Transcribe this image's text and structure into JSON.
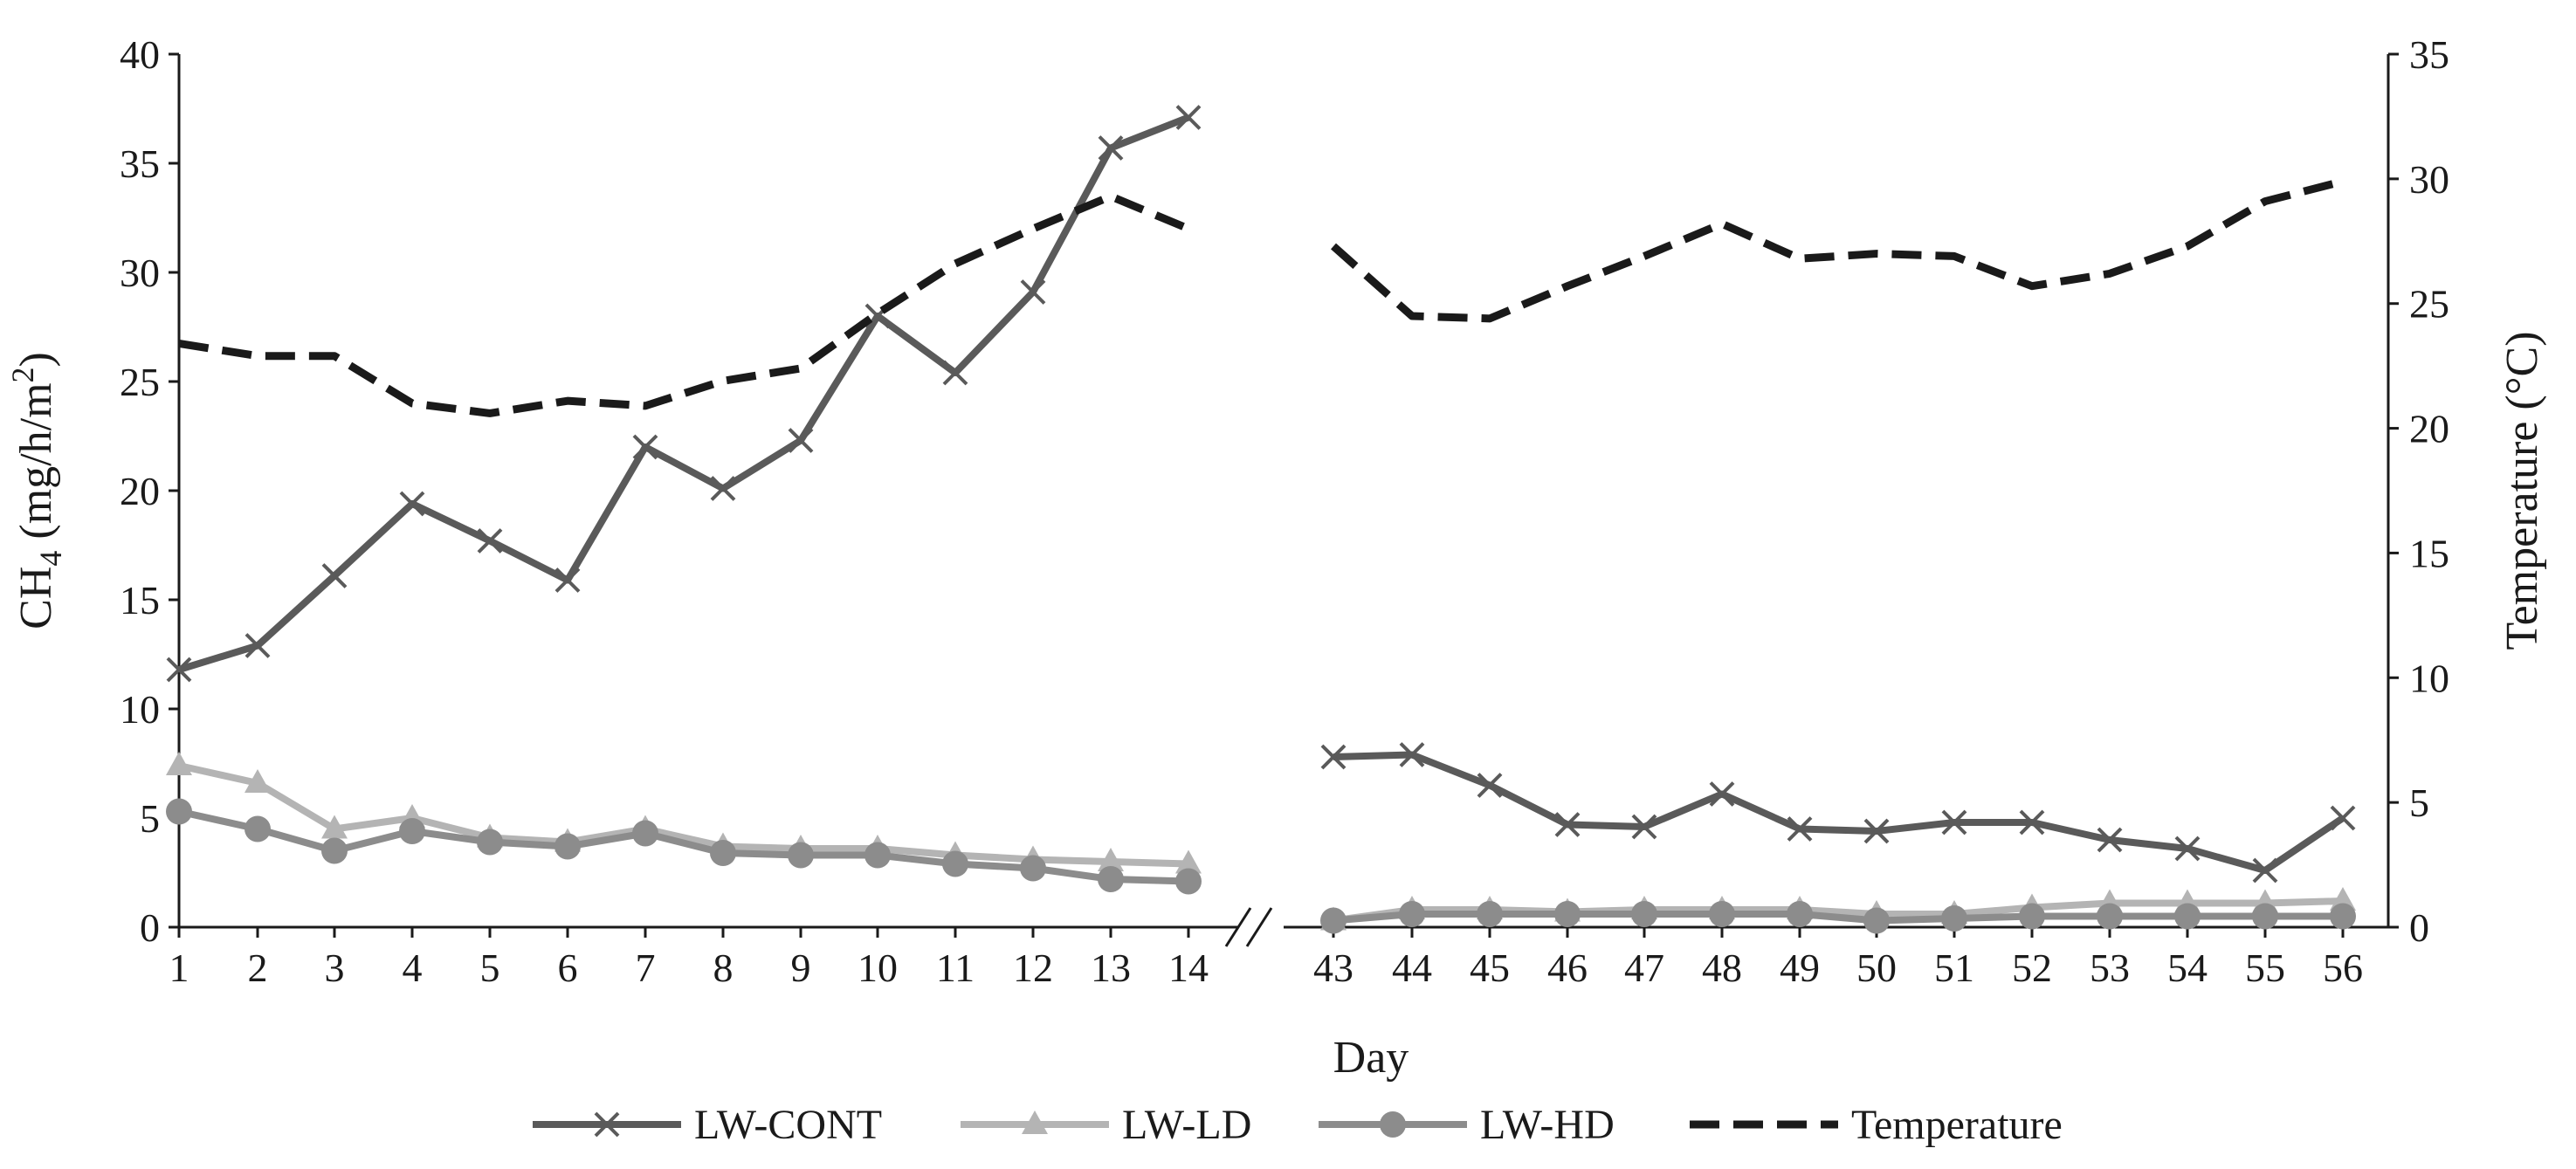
{
  "chart_data": {
    "type": "line",
    "title": "",
    "xlabel": "Day",
    "ylabel_left_main": "CH",
    "ylabel_left_sub": "4",
    "ylabel_left_rest": " (mg/h/m",
    "ylabel_left_sup": "2",
    "ylabel_left_end": ")",
    "ylabel_right": "Temperature (°C)",
    "ylim_left": [
      0,
      40
    ],
    "ylim_right": [
      0,
      35
    ],
    "yticks_left": [
      0,
      5,
      10,
      15,
      20,
      25,
      30,
      35,
      40
    ],
    "yticks_right": [
      0,
      5,
      10,
      15,
      20,
      25,
      30,
      35
    ],
    "categories": [
      "1",
      "2",
      "3",
      "4",
      "5",
      "6",
      "7",
      "8",
      "9",
      "10",
      "11",
      "12",
      "13",
      "14",
      "43",
      "44",
      "45",
      "46",
      "47",
      "48",
      "49",
      "50",
      "51",
      "52",
      "53",
      "54",
      "55",
      "56"
    ],
    "axis_break": "between 14 and 43",
    "series": [
      {
        "name": "LW-CONT",
        "axis": "left",
        "color": "#5a5a5a",
        "marker": "x",
        "values": [
          11.8,
          12.9,
          16.1,
          19.4,
          17.7,
          15.9,
          22.0,
          20.1,
          22.3,
          28.0,
          25.4,
          29.1,
          35.7,
          37.1,
          7.8,
          7.9,
          6.5,
          4.7,
          4.6,
          6.1,
          4.5,
          4.4,
          4.8,
          4.8,
          4.0,
          3.6,
          2.6,
          5.0
        ]
      },
      {
        "name": "LW-LD",
        "axis": "left",
        "color": "#b4b4b4",
        "marker": "triangle",
        "values": [
          7.4,
          6.6,
          4.5,
          5.0,
          4.1,
          3.9,
          4.5,
          3.7,
          3.6,
          3.6,
          3.3,
          3.1,
          3.0,
          2.9,
          0.3,
          0.8,
          0.8,
          0.7,
          0.8,
          0.8,
          0.8,
          0.6,
          0.6,
          0.9,
          1.1,
          1.1,
          1.1,
          1.2
        ]
      },
      {
        "name": "LW-HD",
        "axis": "left",
        "color": "#8c8c8c",
        "marker": "circle",
        "values": [
          5.3,
          4.5,
          3.5,
          4.4,
          3.9,
          3.7,
          4.3,
          3.4,
          3.3,
          3.3,
          2.9,
          2.7,
          2.2,
          2.1,
          0.3,
          0.6,
          0.6,
          0.6,
          0.6,
          0.6,
          0.6,
          0.3,
          0.4,
          0.5,
          0.5,
          0.5,
          0.5,
          0.5
        ]
      },
      {
        "name": "Temperature",
        "axis": "right",
        "color": "#1a1a1a",
        "marker": "none",
        "dashed": true,
        "values": [
          23.4,
          22.9,
          22.9,
          21.0,
          20.6,
          21.1,
          20.9,
          21.9,
          22.4,
          24.6,
          26.6,
          28.0,
          29.3,
          28.0,
          27.3,
          24.5,
          24.4,
          25.7,
          26.9,
          28.2,
          26.8,
          27.0,
          26.9,
          25.7,
          26.2,
          27.3,
          29.1,
          29.9
        ]
      }
    ],
    "legend": [
      "LW-CONT",
      "LW-LD",
      "LW-HD",
      "Temperature"
    ],
    "legend_position": "bottom-center"
  }
}
